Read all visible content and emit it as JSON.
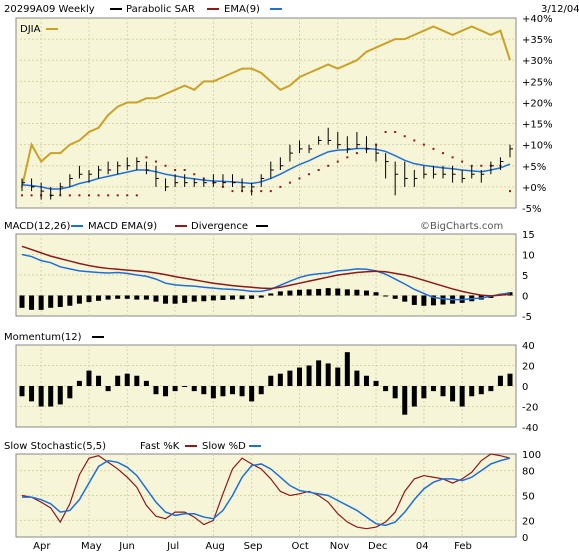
{
  "header": {
    "symbol": "20299A09",
    "period": "Weekly",
    "date": "3/12/04",
    "watermark": "©BigCharts.com"
  },
  "x_axis": {
    "labels": [
      "Apr",
      "May",
      "Jun",
      "Jul",
      "Aug",
      "Sep",
      "Oct",
      "Nov",
      "Dec",
      "04",
      "Feb"
    ]
  },
  "colors": {
    "background": "#ffffff",
    "panel_bg": "#f7f5d8",
    "price": "#000000",
    "sar": "#8b1a1a",
    "ema": "#1e6fd9",
    "djia": "#c9a227",
    "macd": "#1e6fd9",
    "macd_ema": "#8b1a1a",
    "divergence": "#000000",
    "momentum": "#000000",
    "fast_k": "#8b1a1a",
    "slow_d": "#1e6fd9"
  },
  "chart_data": [
    {
      "type": "line",
      "panel": "price",
      "legend": [
        {
          "name": "20299A09 Weekly",
          "color": "#000000"
        },
        {
          "name": "Parabolic SAR",
          "color": "#8b1a1a"
        },
        {
          "name": "EMA(9)",
          "color": "#1e6fd9"
        }
      ],
      "secondary_label": "DJIA",
      "ylim": [
        -5,
        40
      ],
      "y_ticks": [
        "+40%",
        "+35%",
        "+30%",
        "+25%",
        "+20%",
        "+15%",
        "+10%",
        "+5%",
        "+0%",
        "-5%"
      ],
      "y_tick_values": [
        40,
        35,
        30,
        25,
        20,
        15,
        10,
        5,
        0,
        -5
      ],
      "series": [
        {
          "name": "DJIA",
          "values": [
            0,
            10,
            6,
            8,
            8,
            10,
            11,
            13,
            14,
            17,
            19,
            20,
            20,
            21,
            21,
            22,
            23,
            24,
            23,
            25,
            25,
            26,
            27,
            28,
            28,
            27,
            25,
            23,
            24,
            26,
            27,
            28,
            29,
            28,
            29,
            30,
            32,
            33,
            34,
            35,
            35,
            36,
            37,
            38,
            37,
            36,
            37,
            38,
            37,
            36,
            37,
            30
          ]
        },
        {
          "name": "Price High",
          "values": [
            2,
            2,
            1,
            0,
            1,
            3,
            5,
            4,
            5,
            6,
            6,
            7,
            7,
            6,
            5,
            2,
            3,
            3,
            2,
            2,
            3,
            3,
            3,
            2,
            1,
            3,
            6,
            7,
            10,
            11,
            10,
            12,
            14,
            13,
            12,
            13,
            12,
            10,
            8,
            6,
            6,
            4,
            5,
            5,
            5,
            5,
            4,
            5,
            4,
            6,
            7,
            10
          ]
        },
        {
          "name": "Price Low",
          "values": [
            -1,
            -1,
            -3,
            -3,
            -2,
            0,
            2,
            1,
            2,
            3,
            3,
            4,
            4,
            3,
            0,
            -1,
            0,
            0,
            0,
            0,
            0,
            0,
            0,
            -1,
            -2,
            0,
            2,
            4,
            6,
            8,
            8,
            10,
            10,
            9,
            8,
            9,
            8,
            6,
            2,
            -2,
            0,
            0,
            2,
            2,
            2,
            1,
            1,
            2,
            1,
            3,
            4,
            7
          ]
        },
        {
          "name": "Price Close",
          "values": [
            1,
            0,
            -1,
            -2,
            0,
            2,
            3,
            3,
            4,
            4,
            5,
            5,
            6,
            4,
            2,
            0,
            1,
            1,
            1,
            1,
            1,
            1,
            1,
            0,
            0,
            2,
            4,
            5,
            8,
            9,
            9,
            11,
            11,
            10,
            9,
            10,
            9,
            8,
            6,
            3,
            2,
            2,
            3,
            3,
            3,
            3,
            2,
            3,
            3,
            5,
            6,
            9
          ]
        },
        {
          "name": "Parabolic SAR",
          "values": [
            -2,
            -2,
            -2,
            -2,
            -2,
            -2,
            -2,
            -2,
            -2,
            -2,
            -2,
            -2,
            -2,
            7,
            6,
            5,
            4,
            4,
            3,
            2,
            1,
            0,
            -1,
            -1,
            -1,
            -1,
            -1,
            0,
            1,
            2,
            3,
            4,
            5,
            6,
            7,
            8,
            9,
            10,
            13,
            13,
            12,
            11,
            10,
            9,
            8,
            7,
            6,
            5,
            5,
            5,
            5,
            -1
          ]
        },
        {
          "name": "EMA(9)",
          "values": [
            0.5,
            0.3,
            0,
            -0.5,
            -0.5,
            0,
            0.8,
            1.3,
            2,
            2.5,
            3,
            3.5,
            4,
            4,
            3.6,
            3,
            2.6,
            2.2,
            1.9,
            1.6,
            1.4,
            1.3,
            1.2,
            1,
            0.8,
            1.2,
            2,
            3,
            4.2,
            5.3,
            6.2,
            7.3,
            8.3,
            8.7,
            8.8,
            9.1,
            9.1,
            8.9,
            8.4,
            7.4,
            6.3,
            5.5,
            5.1,
            4.8,
            4.5,
            4.3,
            4,
            3.8,
            3.6,
            4,
            4.5,
            5.4
          ]
        }
      ]
    },
    {
      "type": "bar",
      "panel": "macd",
      "legend": [
        {
          "name": "MACD(12,26)",
          "color": "#000000"
        },
        {
          "name": "MACD EMA(9)",
          "color": "#1e6fd9"
        },
        {
          "name": "Divergence",
          "color": "#8b1a1a"
        }
      ],
      "ylim": [
        -5,
        15
      ],
      "y_ticks": [
        "15",
        "10",
        "5",
        "0",
        "-5"
      ],
      "y_tick_values": [
        15,
        10,
        5,
        0,
        -5
      ],
      "series": [
        {
          "name": "MACD",
          "values": [
            10,
            9.5,
            8.5,
            8,
            7,
            6.5,
            6,
            5.8,
            5.6,
            5.5,
            5.6,
            5.4,
            5,
            4.7,
            4,
            3,
            2.6,
            2.4,
            2.3,
            2,
            1.8,
            1.6,
            1.5,
            1.3,
            1,
            1,
            1.5,
            2.5,
            3.5,
            4.4,
            5,
            5.3,
            5.5,
            6,
            6.2,
            6.5,
            6.4,
            6,
            5.2,
            4,
            2.8,
            1.5,
            0.5,
            -0.5,
            -0.8,
            -1,
            -1,
            -0.8,
            -0.6,
            -0.2,
            0.3,
            0.6
          ]
        },
        {
          "name": "MACD EMA(9)",
          "values": [
            12,
            11.2,
            10.4,
            9.6,
            9,
            8.4,
            7.8,
            7.3,
            6.9,
            6.6,
            6.4,
            6.2,
            6,
            5.8,
            5.5,
            5.1,
            4.6,
            4.2,
            3.8,
            3.4,
            3,
            2.7,
            2.4,
            2.2,
            2,
            1.8,
            1.7,
            2,
            2.5,
            3,
            3.5,
            4,
            4.5,
            5,
            5.3,
            5.6,
            5.8,
            5.9,
            5.8,
            5.4,
            5,
            4.4,
            3.7,
            3,
            2.3,
            1.6,
            1,
            0.5,
            0.1,
            -0.1,
            0.1,
            0.3
          ]
        },
        {
          "name": "Divergence",
          "values": [
            -3,
            -3.5,
            -3.5,
            -3,
            -2.8,
            -2.5,
            -2,
            -1.6,
            -1.3,
            -1,
            -0.8,
            -0.8,
            -1,
            -1,
            -1.5,
            -2,
            -2,
            -1.8,
            -1.5,
            -1.4,
            -1.2,
            -1.1,
            -1,
            -0.9,
            -0.8,
            -0.5,
            0.5,
            1,
            1.2,
            1.4,
            1.5,
            1.6,
            1.8,
            1.7,
            1.5,
            1.4,
            1.2,
            0.8,
            0,
            -0.8,
            -1.5,
            -2.3,
            -2.5,
            -2.4,
            -2.2,
            -2,
            -1.8,
            -1.4,
            -1,
            -0.6,
            0.4,
            0.8
          ]
        }
      ]
    },
    {
      "type": "bar",
      "panel": "momentum",
      "legend": [
        {
          "name": "Momentum(12)",
          "color": "#000000"
        }
      ],
      "ylim": [
        -40,
        40
      ],
      "y_ticks": [
        "40",
        "20",
        "0",
        "-20",
        "-40"
      ],
      "y_tick_values": [
        40,
        20,
        0,
        -20,
        -40
      ],
      "series": [
        {
          "name": "Momentum(12)",
          "values": [
            -10,
            -15,
            -20,
            -20,
            -18,
            -12,
            5,
            15,
            10,
            -5,
            10,
            12,
            10,
            5,
            -8,
            -10,
            -5,
            0,
            -5,
            -8,
            -12,
            -10,
            -8,
            -10,
            -15,
            -8,
            10,
            12,
            15,
            18,
            20,
            25,
            22,
            18,
            33,
            15,
            10,
            5,
            -5,
            -12,
            -28,
            -20,
            -12,
            -5,
            -10,
            -15,
            -20,
            -10,
            -8,
            -5,
            10,
            12
          ]
        }
      ]
    },
    {
      "type": "line",
      "panel": "stochastic",
      "legend": [
        {
          "name": "Slow Stochastic(5,5)",
          "color": "#000000"
        },
        {
          "name": "Fast %K",
          "color": "#8b1a1a"
        },
        {
          "name": "Slow %D",
          "color": "#1e6fd9"
        }
      ],
      "ylim": [
        0,
        100
      ],
      "y_ticks": [
        "100",
        "80",
        "50",
        "20",
        "0"
      ],
      "y_tick_values": [
        100,
        80,
        50,
        20,
        0
      ],
      "series": [
        {
          "name": "Fast %K",
          "values": [
            50,
            48,
            42,
            35,
            18,
            40,
            75,
            95,
            98,
            90,
            82,
            72,
            60,
            38,
            25,
            22,
            30,
            30,
            24,
            15,
            20,
            52,
            82,
            95,
            88,
            82,
            70,
            55,
            50,
            52,
            55,
            50,
            42,
            28,
            18,
            12,
            10,
            12,
            18,
            30,
            55,
            70,
            74,
            72,
            70,
            65,
            70,
            78,
            92,
            100,
            98,
            95
          ]
        },
        {
          "name": "Slow %D",
          "values": [
            48,
            48,
            45,
            40,
            30,
            32,
            45,
            65,
            85,
            92,
            90,
            84,
            74,
            58,
            42,
            30,
            26,
            28,
            28,
            24,
            22,
            32,
            50,
            72,
            86,
            88,
            82,
            72,
            62,
            56,
            54,
            52,
            50,
            44,
            38,
            32,
            24,
            16,
            14,
            18,
            30,
            45,
            58,
            66,
            70,
            70,
            68,
            72,
            80,
            88,
            92,
            95
          ]
        }
      ]
    }
  ]
}
